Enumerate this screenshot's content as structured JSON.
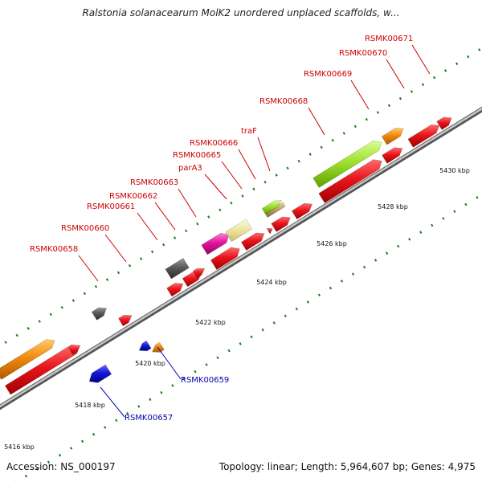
{
  "title": "Ralstonia solanacearum MolK2 unordered unplaced scaffolds, w...",
  "footer": {
    "accession_label": "Accession:",
    "accession": "NS_000197",
    "topology_label": "Topology:",
    "topology": "linear",
    "length_label": "Length:",
    "length": "5,964,607 bp",
    "genes_label": "Genes:",
    "genes": "4,975"
  },
  "colors": {
    "backbone": "#9a9a9a",
    "forward_gene": "#e8151b",
    "reverse_gene": "#1717d9",
    "tick": "#1a7a1a",
    "forward_label": "#cc0000",
    "reverse_label": "#0000aa"
  },
  "scale_labels": [
    "5416 kbp",
    "5418 kbp",
    "5420 kbp",
    "5422 kbp",
    "5424 kbp",
    "5426 kbp",
    "5428 kbp",
    "5430 kbp"
  ],
  "forward_labels": [
    "RSMK00658",
    "RSMK00660",
    "RSMK00661",
    "RSMK00662",
    "RSMK00663",
    "parA3",
    "RSMK00665",
    "RSMK00666",
    "traF",
    "RSMK00668",
    "RSMK00669",
    "RSMK00670",
    "RSMK00671"
  ],
  "reverse_labels": [
    "RSMK00657",
    "RSMK00659"
  ]
}
